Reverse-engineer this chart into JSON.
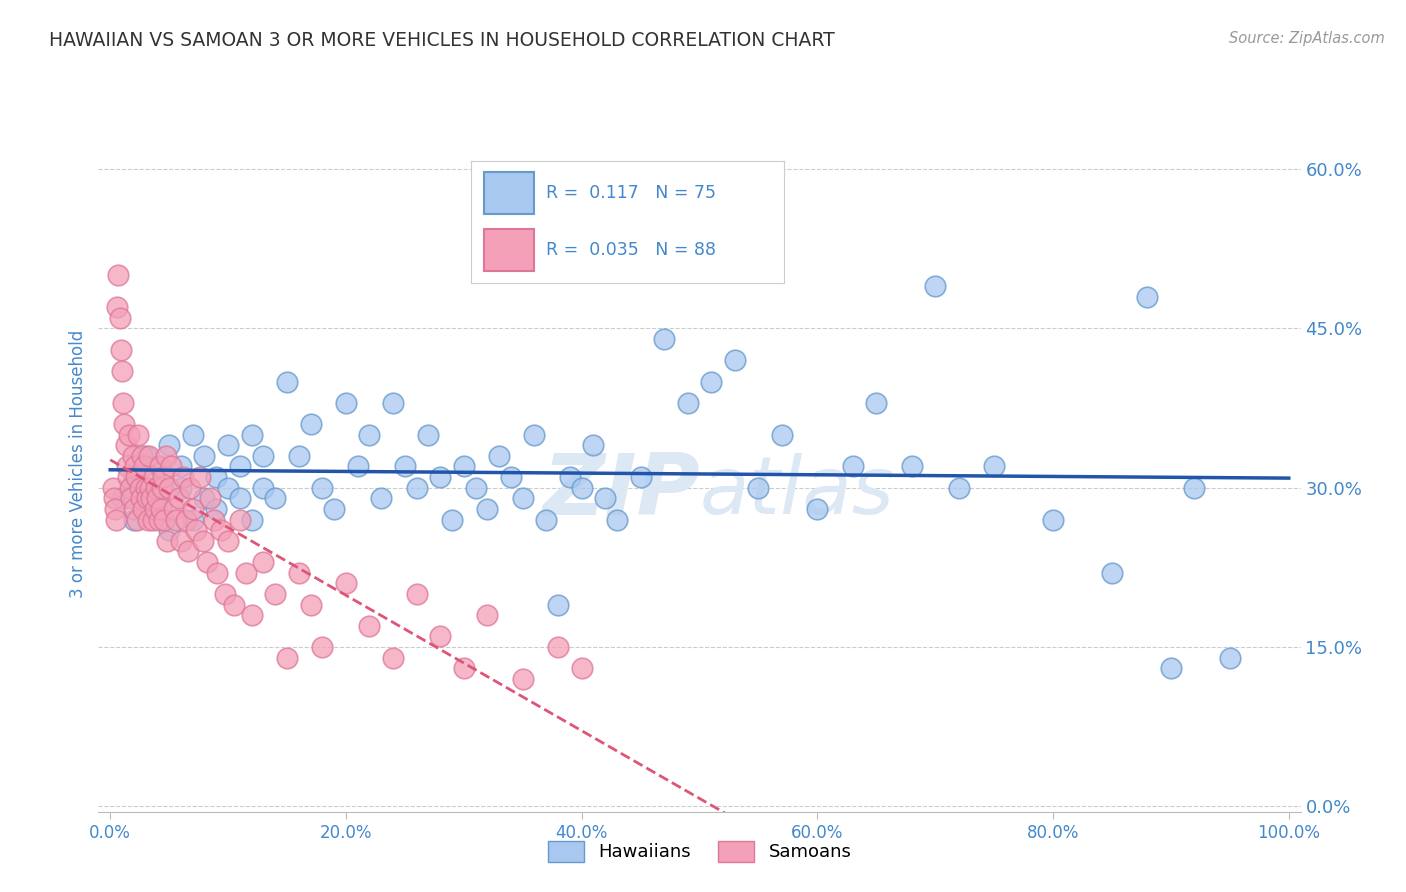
{
  "title": "HAWAIIAN VS SAMOAN 3 OR MORE VEHICLES IN HOUSEHOLD CORRELATION CHART",
  "source": "Source: ZipAtlas.com",
  "ylabel": "3 or more Vehicles in Household",
  "right_yticks": [
    0.0,
    0.15,
    0.3,
    0.45,
    0.6
  ],
  "right_yticklabels": [
    "0.0%",
    "15.0%",
    "30.0%",
    "45.0%",
    "60.0%"
  ],
  "xlim": [
    0.0,
    1.0
  ],
  "ylim": [
    0.0,
    0.65
  ],
  "xticklabels": [
    "0.0%",
    "20.0%",
    "40.0%",
    "60.0%",
    "80.0%",
    "100.0%"
  ],
  "xticks": [
    0.0,
    0.2,
    0.4,
    0.6,
    0.8,
    1.0
  ],
  "hawaiian_R": 0.117,
  "hawaiian_N": 75,
  "samoan_R": 0.035,
  "samoan_N": 88,
  "hawaiian_color": "#a8c8f0",
  "samoan_color": "#f4a0b8",
  "hawaiian_edge": "#6699cc",
  "samoan_edge": "#dd7799",
  "regression_blue": "#2255aa",
  "regression_pink": "#dd5577",
  "title_color": "#333333",
  "axis_color": "#4488cc",
  "watermark_color": "#dde8f5",
  "background_color": "#ffffff",
  "grid_color": "#cccccc",
  "hawaiian_x": [
    0.01,
    0.02,
    0.02,
    0.03,
    0.03,
    0.04,
    0.04,
    0.05,
    0.05,
    0.06,
    0.06,
    0.07,
    0.07,
    0.08,
    0.08,
    0.09,
    0.09,
    0.1,
    0.1,
    0.11,
    0.11,
    0.12,
    0.12,
    0.13,
    0.13,
    0.14,
    0.15,
    0.16,
    0.17,
    0.18,
    0.19,
    0.2,
    0.21,
    0.22,
    0.23,
    0.24,
    0.25,
    0.26,
    0.27,
    0.28,
    0.29,
    0.3,
    0.31,
    0.32,
    0.33,
    0.34,
    0.35,
    0.36,
    0.37,
    0.38,
    0.39,
    0.4,
    0.41,
    0.42,
    0.43,
    0.45,
    0.47,
    0.49,
    0.51,
    0.53,
    0.55,
    0.57,
    0.6,
    0.63,
    0.65,
    0.68,
    0.7,
    0.72,
    0.75,
    0.8,
    0.85,
    0.88,
    0.9,
    0.92,
    0.95
  ],
  "hawaiian_y": [
    0.29,
    0.27,
    0.31,
    0.3,
    0.33,
    0.28,
    0.32,
    0.26,
    0.34,
    0.3,
    0.32,
    0.27,
    0.35,
    0.29,
    0.33,
    0.31,
    0.28,
    0.3,
    0.34,
    0.29,
    0.32,
    0.35,
    0.27,
    0.3,
    0.33,
    0.29,
    0.4,
    0.33,
    0.36,
    0.3,
    0.28,
    0.38,
    0.32,
    0.35,
    0.29,
    0.38,
    0.32,
    0.3,
    0.35,
    0.31,
    0.27,
    0.32,
    0.3,
    0.28,
    0.33,
    0.31,
    0.29,
    0.35,
    0.27,
    0.19,
    0.31,
    0.3,
    0.34,
    0.29,
    0.27,
    0.31,
    0.44,
    0.38,
    0.4,
    0.42,
    0.3,
    0.35,
    0.28,
    0.32,
    0.38,
    0.32,
    0.49,
    0.3,
    0.32,
    0.27,
    0.22,
    0.48,
    0.13,
    0.3,
    0.14
  ],
  "samoan_x": [
    0.002,
    0.003,
    0.004,
    0.005,
    0.006,
    0.007,
    0.008,
    0.009,
    0.01,
    0.011,
    0.012,
    0.013,
    0.014,
    0.015,
    0.016,
    0.017,
    0.018,
    0.019,
    0.02,
    0.021,
    0.022,
    0.023,
    0.024,
    0.025,
    0.026,
    0.027,
    0.028,
    0.029,
    0.03,
    0.031,
    0.032,
    0.033,
    0.034,
    0.035,
    0.036,
    0.037,
    0.038,
    0.039,
    0.04,
    0.041,
    0.042,
    0.043,
    0.044,
    0.045,
    0.046,
    0.047,
    0.048,
    0.05,
    0.052,
    0.054,
    0.056,
    0.058,
    0.06,
    0.062,
    0.064,
    0.066,
    0.068,
    0.07,
    0.073,
    0.076,
    0.079,
    0.082,
    0.085,
    0.088,
    0.091,
    0.094,
    0.097,
    0.1,
    0.105,
    0.11,
    0.115,
    0.12,
    0.13,
    0.14,
    0.15,
    0.16,
    0.17,
    0.18,
    0.2,
    0.22,
    0.24,
    0.26,
    0.28,
    0.3,
    0.32,
    0.35,
    0.38,
    0.4
  ],
  "samoan_y": [
    0.3,
    0.29,
    0.28,
    0.27,
    0.47,
    0.5,
    0.46,
    0.43,
    0.41,
    0.38,
    0.36,
    0.34,
    0.32,
    0.31,
    0.35,
    0.3,
    0.29,
    0.33,
    0.28,
    0.32,
    0.31,
    0.27,
    0.35,
    0.3,
    0.29,
    0.33,
    0.28,
    0.32,
    0.3,
    0.29,
    0.27,
    0.33,
    0.3,
    0.29,
    0.27,
    0.31,
    0.28,
    0.3,
    0.29,
    0.27,
    0.32,
    0.28,
    0.3,
    0.31,
    0.27,
    0.33,
    0.25,
    0.3,
    0.32,
    0.28,
    0.27,
    0.29,
    0.25,
    0.31,
    0.27,
    0.24,
    0.3,
    0.28,
    0.26,
    0.31,
    0.25,
    0.23,
    0.29,
    0.27,
    0.22,
    0.26,
    0.2,
    0.25,
    0.19,
    0.27,
    0.22,
    0.18,
    0.23,
    0.2,
    0.14,
    0.22,
    0.19,
    0.15,
    0.21,
    0.17,
    0.14,
    0.2,
    0.16,
    0.13,
    0.18,
    0.12,
    0.15,
    0.13
  ]
}
